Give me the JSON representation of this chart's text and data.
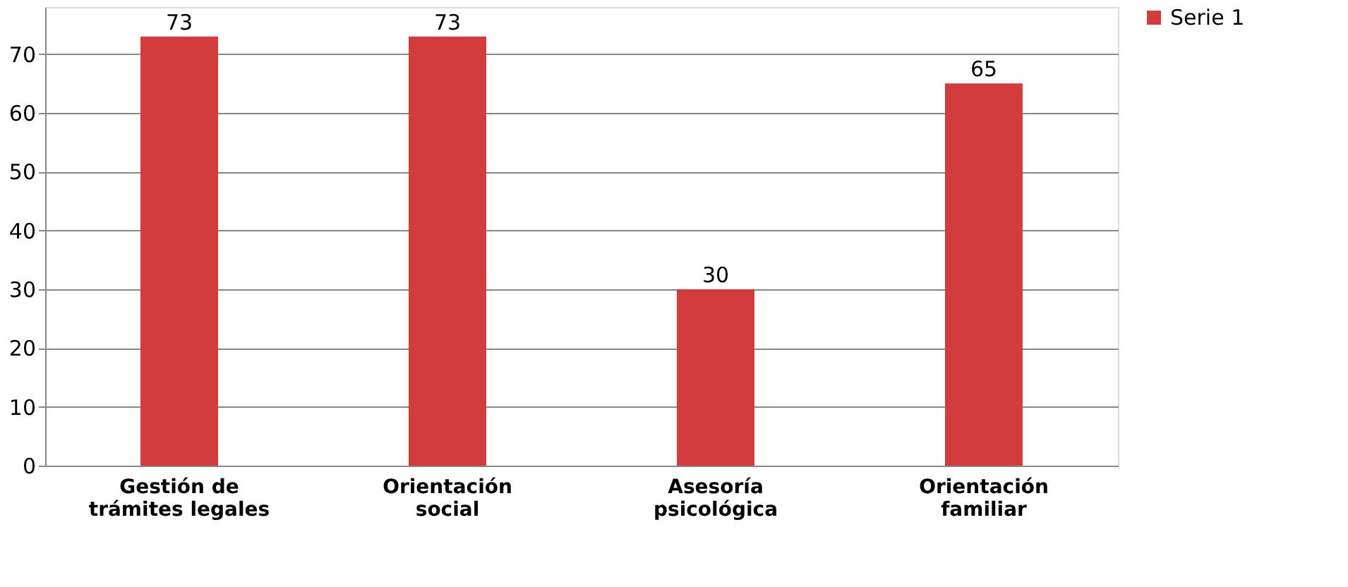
{
  "chart_data": {
    "type": "bar",
    "categories": [
      "Gestión de\ntrámites legales",
      "Orientación\nsocial",
      "Asesoría\npsicológica",
      "Orientación\nfamiliar"
    ],
    "series": [
      {
        "name": "Serie 1",
        "color": "#d23c3c",
        "values": [
          73,
          73,
          30,
          65
        ]
      }
    ],
    "ylim": [
      0,
      78
    ],
    "yticks": [
      0,
      10,
      20,
      30,
      40,
      50,
      60,
      70
    ],
    "grid": "y",
    "legend": "right",
    "data_labels": true
  }
}
